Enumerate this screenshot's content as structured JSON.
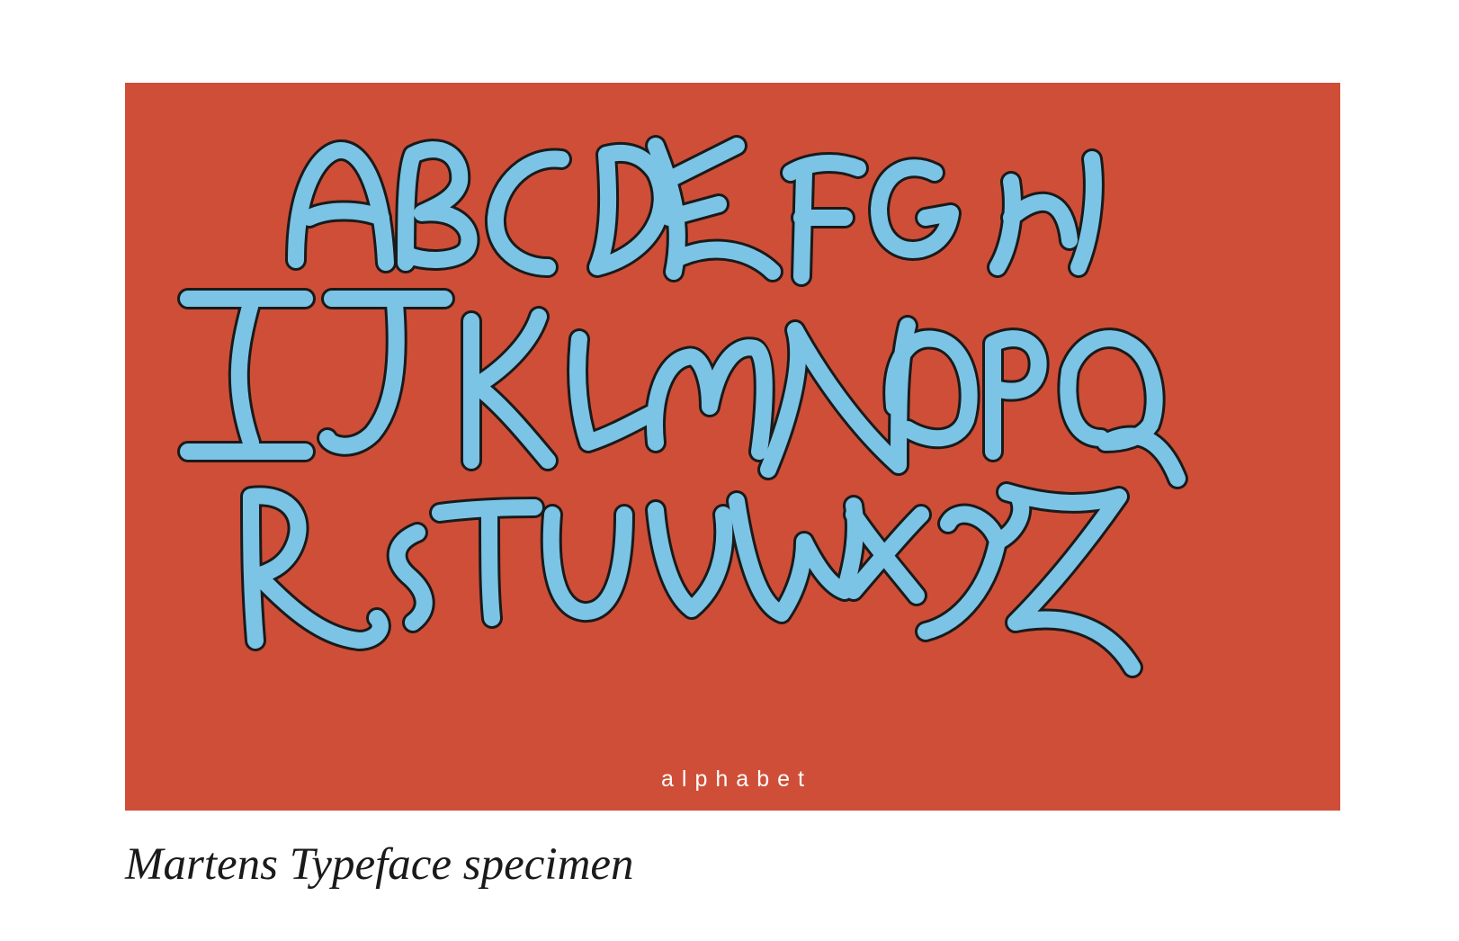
{
  "specimen": {
    "caption": "alphabet",
    "background_color": "#CF4E37",
    "letter_fill": "#7BC4E5",
    "letter_outline": "#1a1a1a",
    "caption_color": "#ffffff"
  },
  "page": {
    "title": "Martens Typeface specimen"
  }
}
